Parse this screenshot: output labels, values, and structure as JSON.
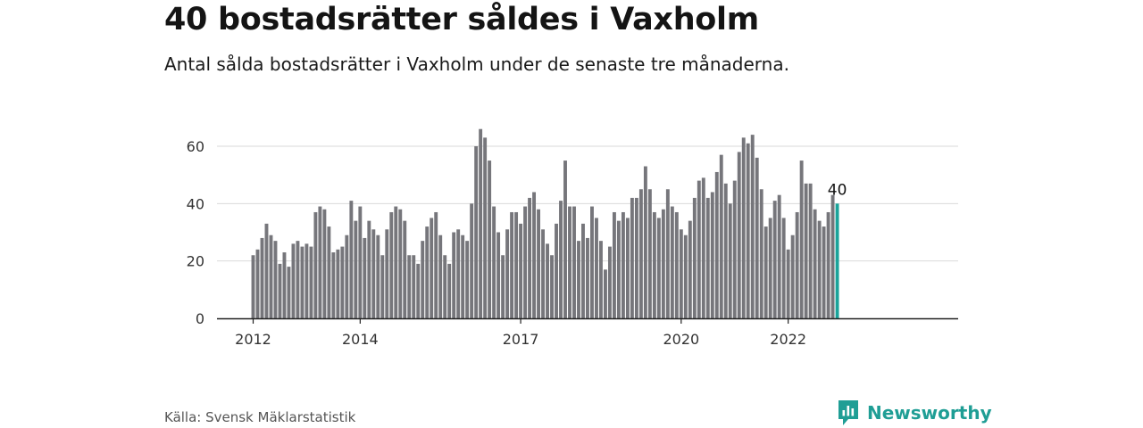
{
  "header": {
    "title": "40 bostadsrätter såldes i Vaxholm",
    "subtitle": "Antal sålda bostadsrätter i Vaxholm under de senaste tre månaderna."
  },
  "footer": {
    "source": "Källa: Svensk Mäklarstatistik",
    "brand": "Newsworthy"
  },
  "colors": {
    "bar": "#76767b",
    "highlight": "#1aa39a",
    "grid": "#d9d9d9",
    "axis": "#222222",
    "brand": "#1f9e95"
  },
  "chart_data": {
    "type": "bar",
    "title": "40 bostadsrätter såldes i Vaxholm",
    "subtitle": "Antal sålda bostadsrätter i Vaxholm under de senaste tre månaderna.",
    "xlabel": "",
    "ylabel": "",
    "ylim": [
      0,
      70
    ],
    "yticks": [
      0,
      20,
      40,
      60
    ],
    "grid": true,
    "x_start": "2012-01",
    "x_end": "2022-12",
    "frequency": "monthly",
    "xtick_labels": [
      {
        "label": "2012",
        "x": "2012-01"
      },
      {
        "label": "2014",
        "x": "2014-01"
      },
      {
        "label": "2017",
        "x": "2017-01"
      },
      {
        "label": "2020",
        "x": "2020-01"
      },
      {
        "label": "2022",
        "x": "2022-01"
      }
    ],
    "highlight": {
      "x": "2022-12",
      "value": 40,
      "label": "40"
    },
    "values": [
      22,
      24,
      28,
      33,
      29,
      27,
      19,
      23,
      18,
      26,
      27,
      25,
      26,
      25,
      37,
      39,
      38,
      32,
      23,
      24,
      25,
      29,
      41,
      34,
      39,
      28,
      34,
      31,
      29,
      22,
      31,
      37,
      39,
      38,
      34,
      22,
      22,
      19,
      27,
      32,
      35,
      37,
      29,
      22,
      19,
      30,
      31,
      29,
      27,
      40,
      60,
      66,
      63,
      55,
      39,
      30,
      22,
      31,
      37,
      37,
      33,
      39,
      42,
      44,
      38,
      31,
      26,
      22,
      33,
      41,
      55,
      39,
      39,
      27,
      33,
      28,
      39,
      35,
      27,
      17,
      25,
      37,
      34,
      37,
      35,
      42,
      42,
      45,
      53,
      45,
      37,
      35,
      38,
      45,
      39,
      37,
      31,
      29,
      34,
      42,
      48,
      49,
      42,
      44,
      51,
      57,
      47,
      40,
      48,
      58,
      63,
      61,
      64,
      56,
      45,
      32,
      35,
      41,
      43,
      35,
      24,
      29,
      37,
      55,
      47,
      47,
      38,
      34,
      32,
      37,
      43,
      40
    ]
  }
}
